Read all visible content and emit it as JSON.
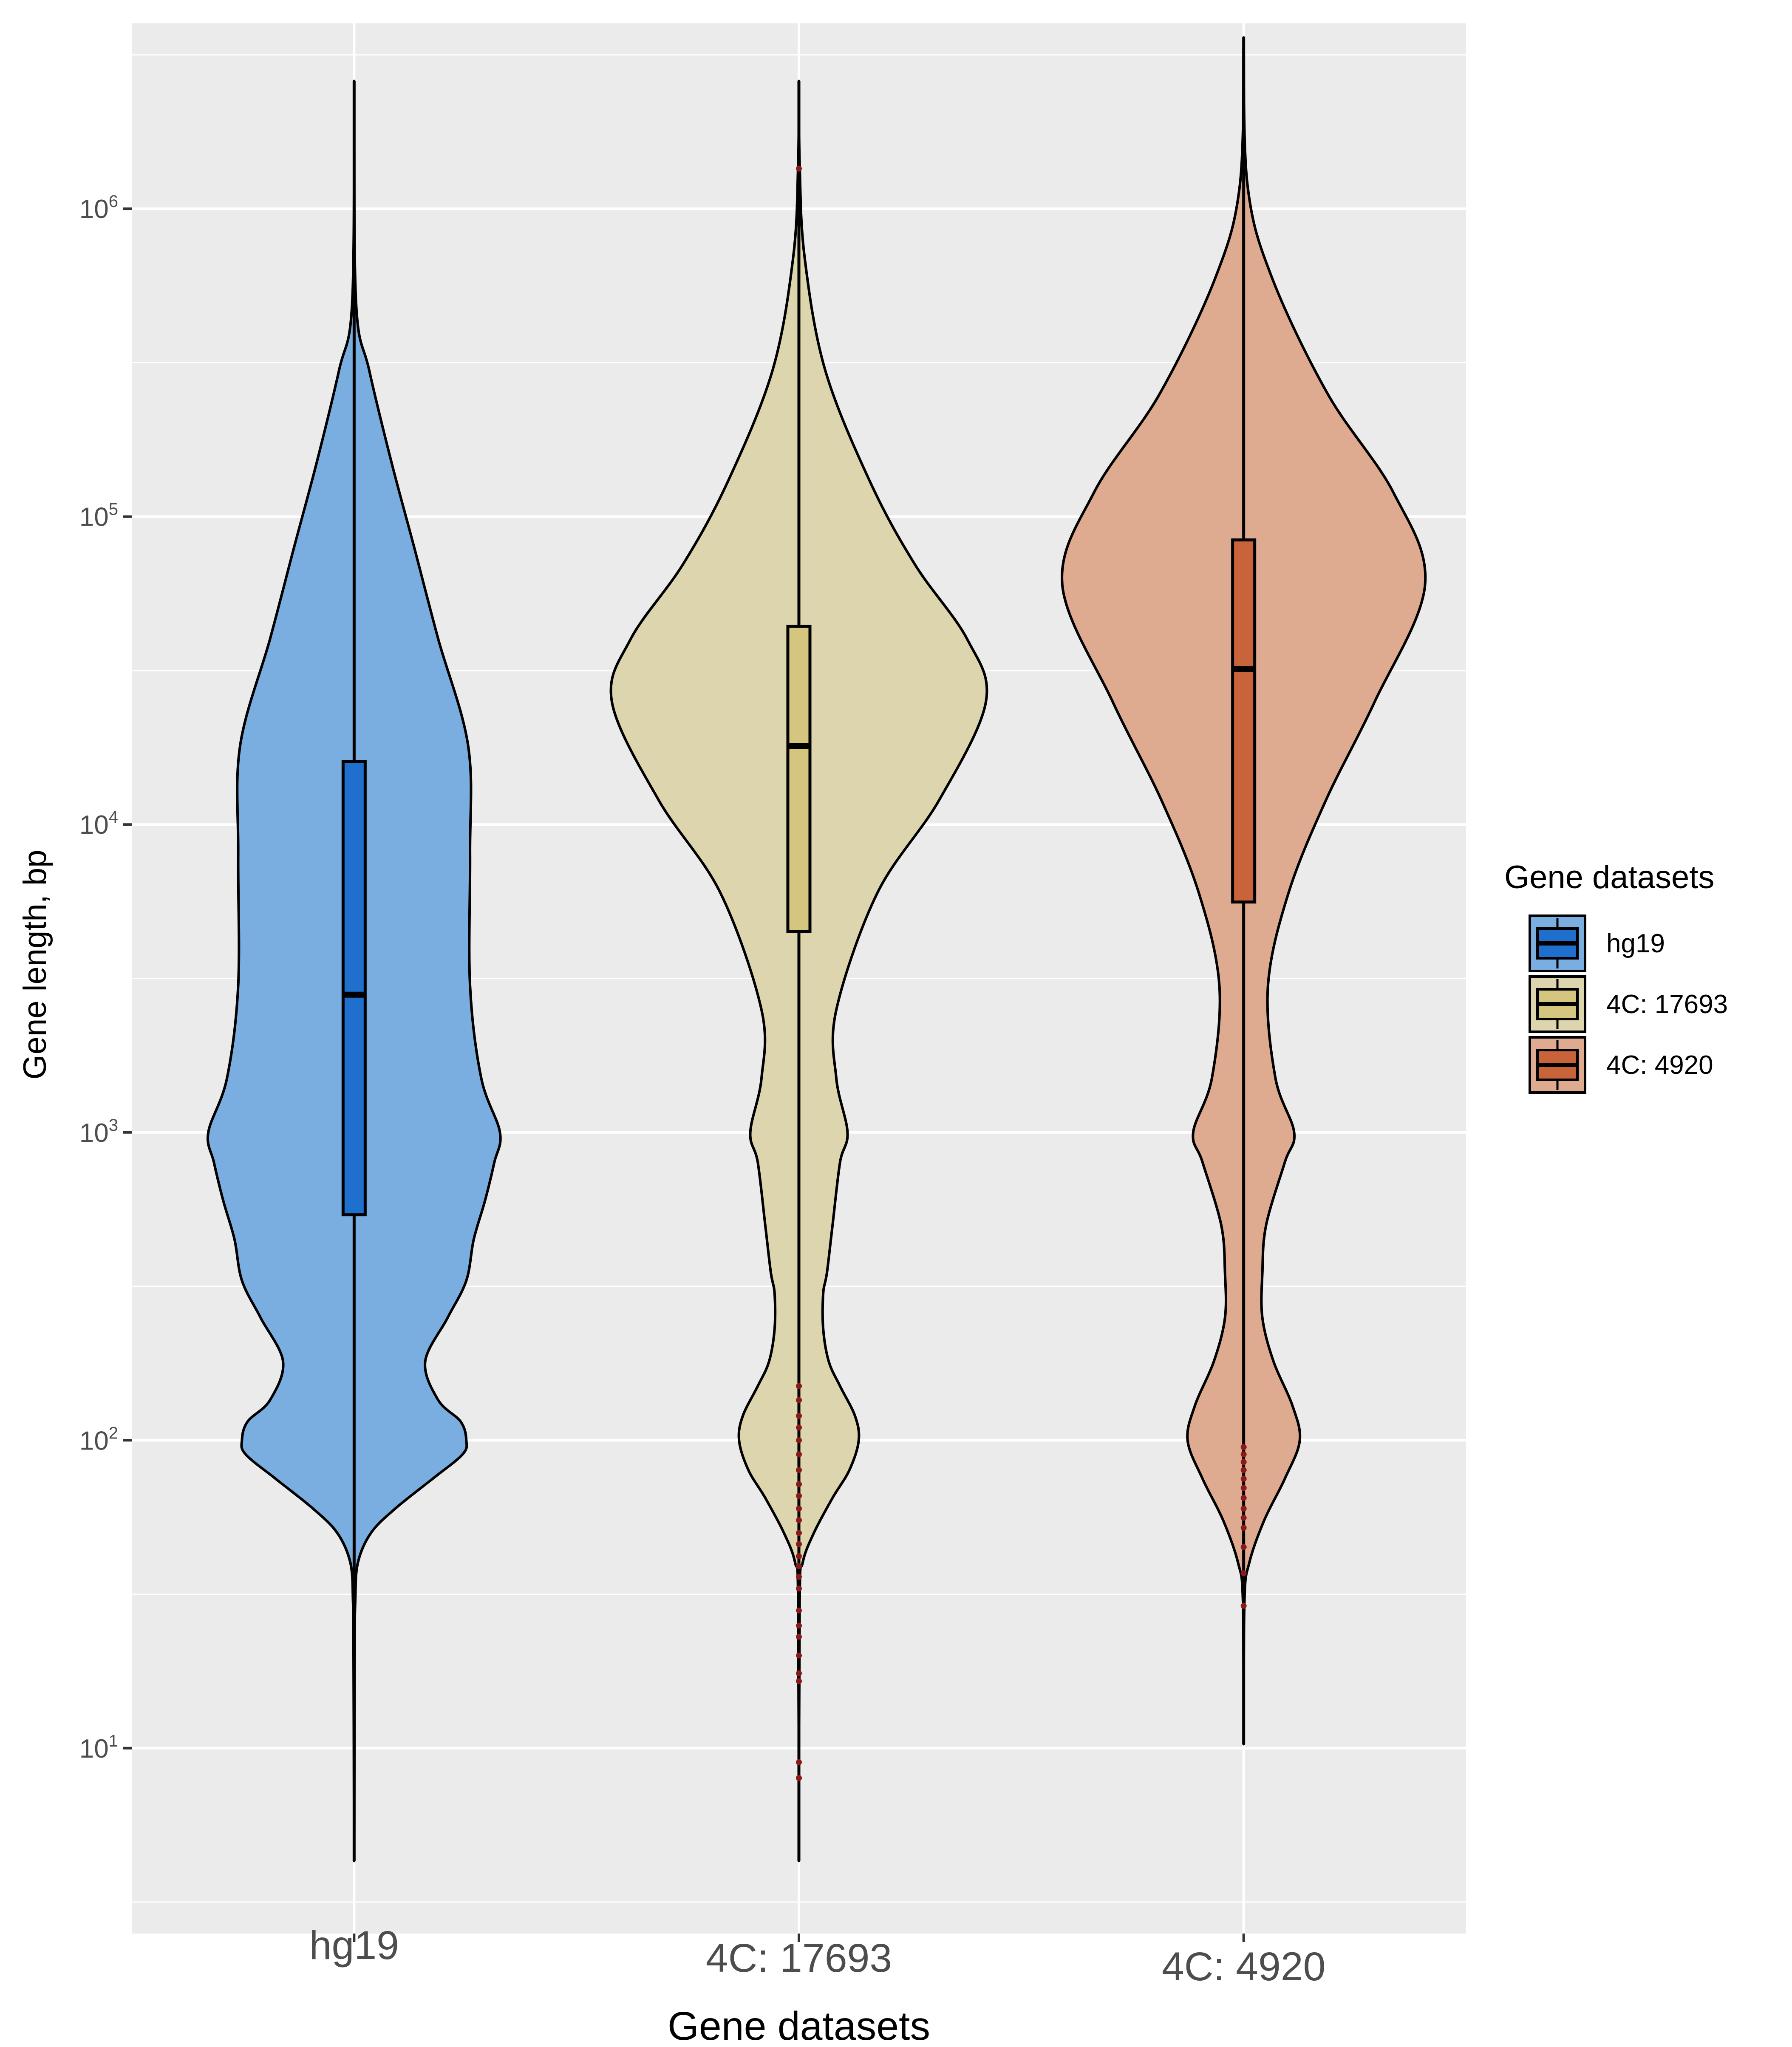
{
  "chart_data": {
    "type": "violin",
    "title": "",
    "xlabel": "Gene datasets",
    "ylabel": "Gene length, bp",
    "y_scale": "log10",
    "ylim": [
      2.5,
      4000000
    ],
    "y_ticks": [
      {
        "value": 10,
        "base": "10",
        "exp": "1"
      },
      {
        "value": 100,
        "base": "10",
        "exp": "2"
      },
      {
        "value": 1000,
        "base": "10",
        "exp": "3"
      },
      {
        "value": 10000,
        "base": "10",
        "exp": "4"
      },
      {
        "value": 100000,
        "base": "10",
        "exp": "5"
      },
      {
        "value": 1000000,
        "base": "10",
        "exp": "6"
      }
    ],
    "categories": [
      "hg19",
      "4C: 17693",
      "4C: 4920"
    ],
    "legend": {
      "title": "Gene datasets",
      "position": "right",
      "entries": [
        "hg19",
        "4C: 17693",
        "4C: 4920"
      ]
    },
    "series": [
      {
        "name": "hg19",
        "violin_color": "#7aade0",
        "box_color": "#1f6fcf",
        "min": 4.3,
        "max": 2600000,
        "box": {
          "q1": 540,
          "median": 2800,
          "q3": 16000
        },
        "outliers": [],
        "density": [
          [
            4.3,
            0.0
          ],
          [
            20,
            0.003
          ],
          [
            30,
            0.006
          ],
          [
            40,
            0.02
          ],
          [
            50,
            0.09
          ],
          [
            60,
            0.22
          ],
          [
            75,
            0.42
          ],
          [
            90,
            0.58
          ],
          [
            100,
            0.6
          ],
          [
            115,
            0.57
          ],
          [
            135,
            0.45
          ],
          [
            180,
            0.38
          ],
          [
            250,
            0.5
          ],
          [
            330,
            0.6
          ],
          [
            450,
            0.64
          ],
          [
            600,
            0.7
          ],
          [
            800,
            0.75
          ],
          [
            1000,
            0.78
          ],
          [
            1500,
            0.68
          ],
          [
            3000,
            0.62
          ],
          [
            8000,
            0.62
          ],
          [
            18000,
            0.61
          ],
          [
            40000,
            0.45
          ],
          [
            80000,
            0.32
          ],
          [
            150000,
            0.2
          ],
          [
            300000,
            0.08
          ],
          [
            500000,
            0.01
          ],
          [
            2600000,
            0.0
          ]
        ]
      },
      {
        "name": "4C: 17693",
        "violin_color": "#ddd5ad",
        "box_color": "#d4c67e",
        "min": 4.3,
        "max": 2600000,
        "box": {
          "q1": 4500,
          "median": 18000,
          "q3": 44000
        },
        "outliers": [
          1350000,
          9.0,
          8.0,
          16.5,
          17.5,
          20,
          23,
          25,
          28,
          33,
          36,
          39,
          42,
          46,
          50,
          55,
          60,
          66,
          72,
          80,
          90,
          100,
          110,
          120,
          135,
          150
        ],
        "density": [
          [
            4.3,
            0.0
          ],
          [
            30,
            0.004
          ],
          [
            40,
            0.02
          ],
          [
            50,
            0.08
          ],
          [
            65,
            0.18
          ],
          [
            80,
            0.27
          ],
          [
            100,
            0.32
          ],
          [
            120,
            0.3
          ],
          [
            150,
            0.22
          ],
          [
            180,
            0.16
          ],
          [
            230,
            0.13
          ],
          [
            300,
            0.13
          ],
          [
            350,
            0.15
          ],
          [
            500,
            0.18
          ],
          [
            800,
            0.22
          ],
          [
            1000,
            0.26
          ],
          [
            1500,
            0.2
          ],
          [
            2500,
            0.2
          ],
          [
            6000,
            0.42
          ],
          [
            12000,
            0.75
          ],
          [
            25000,
            1.0
          ],
          [
            40000,
            0.9
          ],
          [
            70000,
            0.62
          ],
          [
            130000,
            0.38
          ],
          [
            300000,
            0.14
          ],
          [
            700000,
            0.03
          ],
          [
            1400000,
            0.004
          ],
          [
            2600000,
            0.0
          ]
        ]
      },
      {
        "name": "4C: 4920",
        "violin_color": "#deab91",
        "box_color": "#c9633a",
        "min": 10.3,
        "max": 3600000,
        "box": {
          "q1": 5600,
          "median": 32000,
          "q3": 84000
        },
        "outliers": [
          29,
          37,
          45,
          52,
          56,
          60,
          65,
          70,
          75,
          80,
          85,
          90,
          95
        ],
        "density": [
          [
            10.3,
            0.0
          ],
          [
            30,
            0.004
          ],
          [
            40,
            0.03
          ],
          [
            55,
            0.11
          ],
          [
            75,
            0.22
          ],
          [
            100,
            0.3
          ],
          [
            130,
            0.26
          ],
          [
            180,
            0.16
          ],
          [
            250,
            0.1
          ],
          [
            350,
            0.1
          ],
          [
            500,
            0.12
          ],
          [
            800,
            0.22
          ],
          [
            1000,
            0.27
          ],
          [
            1500,
            0.17
          ],
          [
            3000,
            0.13
          ],
          [
            6000,
            0.24
          ],
          [
            12000,
            0.44
          ],
          [
            25000,
            0.7
          ],
          [
            60000,
            0.97
          ],
          [
            120000,
            0.8
          ],
          [
            250000,
            0.45
          ],
          [
            600000,
            0.15
          ],
          [
            1200000,
            0.02
          ],
          [
            3600000,
            0.0
          ]
        ]
      }
    ]
  }
}
